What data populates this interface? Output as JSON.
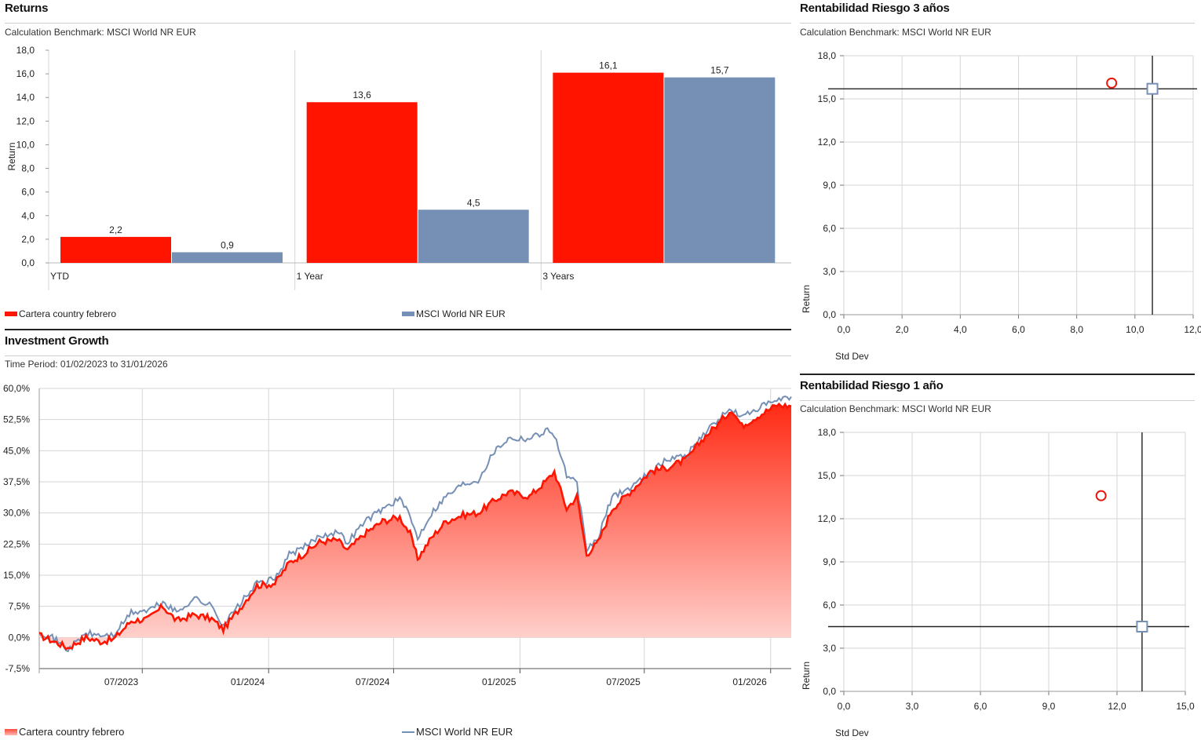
{
  "returns": {
    "title": "Returns",
    "subtitle": "Calculation Benchmark: MSCI World NR EUR",
    "legend": [
      "Cartera country febrero",
      "MSCI World NR EUR"
    ]
  },
  "growth": {
    "title": "Investment Growth",
    "subtitle": "Time Period: 01/02/2023 to 31/01/2026",
    "legend": [
      "Cartera country febrero",
      "MSCI World NR EUR"
    ]
  },
  "risk3": {
    "title": "Rentabilidad Riesgo 3 años",
    "subtitle": "Calculation Benchmark: MSCI World NR EUR"
  },
  "risk1": {
    "title": "Rentabilidad Riesgo 1 año",
    "subtitle": "Calculation Benchmark: MSCI World NR EUR"
  },
  "colors": {
    "portfolio": "#ff1400",
    "benchmark": "#7690b5",
    "axis": "#222222",
    "grid": "#d6d6d6"
  },
  "chart_data": [
    {
      "type": "bar",
      "categories": [
        "YTD",
        "1 Year",
        "3 Years"
      ],
      "series": [
        {
          "name": "Cartera country febrero",
          "values": [
            2.2,
            13.6,
            16.1
          ],
          "labels": [
            "2,2",
            "13,6",
            "16,1"
          ]
        },
        {
          "name": "MSCI World NR EUR",
          "values": [
            0.9,
            4.5,
            15.7
          ],
          "labels": [
            "0,9",
            "4,5",
            "15,7"
          ]
        }
      ],
      "ylabel": "Return",
      "ylim": [
        0,
        18
      ],
      "yticks": [
        "0,0",
        "2,0",
        "4,0",
        "6,0",
        "8,0",
        "10,0",
        "12,0",
        "14,0",
        "16,0",
        "18,0"
      ],
      "legend_position": "bottom"
    },
    {
      "type": "area",
      "xlim": [
        "2023-02-01",
        "2026-01-31"
      ],
      "xticks": [
        "07/2023",
        "01/2024",
        "07/2024",
        "01/2025",
        "07/2025",
        "01/2026"
      ],
      "ylim": [
        -7.5,
        60
      ],
      "yticks": [
        "-7,5%",
        "0,0%",
        "7,5%",
        "15,0%",
        "22,5%",
        "30,0%",
        "37,5%",
        "45,0%",
        "52,5%",
        "60,0%"
      ],
      "series": [
        {
          "name": "Cartera country febrero",
          "points": [
            [
              "2023-02-01",
              0.5
            ],
            [
              "2023-02-20",
              -0.8
            ],
            [
              "2023-03-15",
              -2.5
            ],
            [
              "2023-04-10",
              0
            ],
            [
              "2023-05-01",
              -1
            ],
            [
              "2023-05-20",
              -0.5
            ],
            [
              "2023-06-15",
              4
            ],
            [
              "2023-07-10",
              4.5
            ],
            [
              "2023-07-31",
              7.5
            ],
            [
              "2023-08-20",
              4
            ],
            [
              "2023-09-15",
              5.5
            ],
            [
              "2023-10-10",
              4.5
            ],
            [
              "2023-10-27",
              2
            ],
            [
              "2023-11-20",
              7
            ],
            [
              "2023-12-15",
              12.5
            ],
            [
              "2024-01-10",
              13
            ],
            [
              "2024-01-31",
              18
            ],
            [
              "2024-02-20",
              20
            ],
            [
              "2024-03-15",
              23
            ],
            [
              "2024-04-10",
              23.5
            ],
            [
              "2024-04-25",
              21
            ],
            [
              "2024-05-20",
              25
            ],
            [
              "2024-06-15",
              28
            ],
            [
              "2024-07-10",
              29
            ],
            [
              "2024-07-25",
              25
            ],
            [
              "2024-08-05",
              19
            ],
            [
              "2024-08-25",
              24
            ],
            [
              "2024-09-15",
              28
            ],
            [
              "2024-10-10",
              29.5
            ],
            [
              "2024-11-01",
              30
            ],
            [
              "2024-11-25",
              33
            ],
            [
              "2024-12-15",
              35
            ],
            [
              "2025-01-15",
              34
            ],
            [
              "2025-02-10",
              38
            ],
            [
              "2025-02-20",
              40
            ],
            [
              "2025-03-10",
              31
            ],
            [
              "2025-03-25",
              34
            ],
            [
              "2025-04-08",
              20
            ],
            [
              "2025-04-25",
              23
            ],
            [
              "2025-05-15",
              31
            ],
            [
              "2025-06-10",
              35
            ],
            [
              "2025-07-10",
              40
            ],
            [
              "2025-08-05",
              41
            ],
            [
              "2025-09-01",
              43
            ],
            [
              "2025-09-25",
              48
            ],
            [
              "2025-10-20",
              52
            ],
            [
              "2025-11-05",
              55
            ],
            [
              "2025-11-20",
              51
            ],
            [
              "2025-12-10",
              53
            ],
            [
              "2026-01-10",
              56
            ],
            [
              "2026-01-31",
              55.7
            ]
          ]
        },
        {
          "name": "MSCI World NR EUR",
          "points": [
            [
              "2023-02-01",
              1.5
            ],
            [
              "2023-02-20",
              0
            ],
            [
              "2023-03-15",
              -3
            ],
            [
              "2023-04-10",
              1
            ],
            [
              "2023-05-01",
              0.5
            ],
            [
              "2023-05-20",
              0.5
            ],
            [
              "2023-06-15",
              6
            ],
            [
              "2023-07-10",
              6.5
            ],
            [
              "2023-07-31",
              8.5
            ],
            [
              "2023-08-20",
              6
            ],
            [
              "2023-09-15",
              9.5
            ],
            [
              "2023-10-10",
              7.5
            ],
            [
              "2023-10-27",
              3
            ],
            [
              "2023-11-20",
              8
            ],
            [
              "2023-12-15",
              13
            ],
            [
              "2024-01-10",
              14
            ],
            [
              "2024-01-31",
              20
            ],
            [
              "2024-02-20",
              21.5
            ],
            [
              "2024-03-15",
              24.5
            ],
            [
              "2024-04-10",
              25.5
            ],
            [
              "2024-04-25",
              23
            ],
            [
              "2024-05-20",
              28
            ],
            [
              "2024-06-15",
              31
            ],
            [
              "2024-07-10",
              33.5
            ],
            [
              "2024-07-25",
              29
            ],
            [
              "2024-08-05",
              24
            ],
            [
              "2024-08-25",
              30
            ],
            [
              "2024-09-15",
              34
            ],
            [
              "2024-10-10",
              37
            ],
            [
              "2024-11-01",
              38
            ],
            [
              "2024-11-25",
              45
            ],
            [
              "2024-12-15",
              48
            ],
            [
              "2025-01-15",
              48
            ],
            [
              "2025-02-10",
              50
            ],
            [
              "2025-02-20",
              49
            ],
            [
              "2025-03-10",
              39
            ],
            [
              "2025-03-25",
              37
            ],
            [
              "2025-04-08",
              21
            ],
            [
              "2025-04-25",
              24
            ],
            [
              "2025-05-15",
              34
            ],
            [
              "2025-06-10",
              36
            ],
            [
              "2025-07-10",
              40
            ],
            [
              "2025-08-05",
              43
            ],
            [
              "2025-09-01",
              44
            ],
            [
              "2025-09-25",
              49
            ],
            [
              "2025-10-20",
              53
            ],
            [
              "2025-11-05",
              55
            ],
            [
              "2025-11-20",
              53
            ],
            [
              "2025-12-10",
              55
            ],
            [
              "2026-01-10",
              57
            ],
            [
              "2026-01-31",
              58
            ]
          ]
        }
      ],
      "legend_position": "bottom"
    },
    {
      "type": "scatter",
      "xlabel": "Std Dev",
      "ylabel": "Return",
      "xlim": [
        0,
        12
      ],
      "ylim": [
        0,
        18
      ],
      "xticks": [
        "0,0",
        "2,0",
        "4,0",
        "6,0",
        "8,0",
        "10,0",
        "12,0"
      ],
      "yticks": [
        "0,0",
        "3,0",
        "6,0",
        "9,0",
        "12,0",
        "15,0",
        "18,0"
      ],
      "points": [
        {
          "name": "Cartera country febrero",
          "x": 9.2,
          "y": 16.1,
          "marker": "circle"
        },
        {
          "name": "MSCI World NR EUR",
          "x": 10.6,
          "y": 15.7,
          "marker": "square-crosshair"
        }
      ]
    },
    {
      "type": "scatter",
      "xlabel": "Std Dev",
      "ylabel": "Return",
      "xlim": [
        0,
        15
      ],
      "ylim": [
        0,
        18
      ],
      "xticks": [
        "0,0",
        "3,0",
        "6,0",
        "9,0",
        "12,0",
        "15,0"
      ],
      "yticks": [
        "0,0",
        "3,0",
        "6,0",
        "9,0",
        "12,0",
        "15,0",
        "18,0"
      ],
      "points": [
        {
          "name": "Cartera country febrero",
          "x": 11.3,
          "y": 13.6,
          "marker": "circle"
        },
        {
          "name": "MSCI World NR EUR",
          "x": 13.1,
          "y": 4.5,
          "marker": "square-crosshair"
        }
      ]
    }
  ]
}
